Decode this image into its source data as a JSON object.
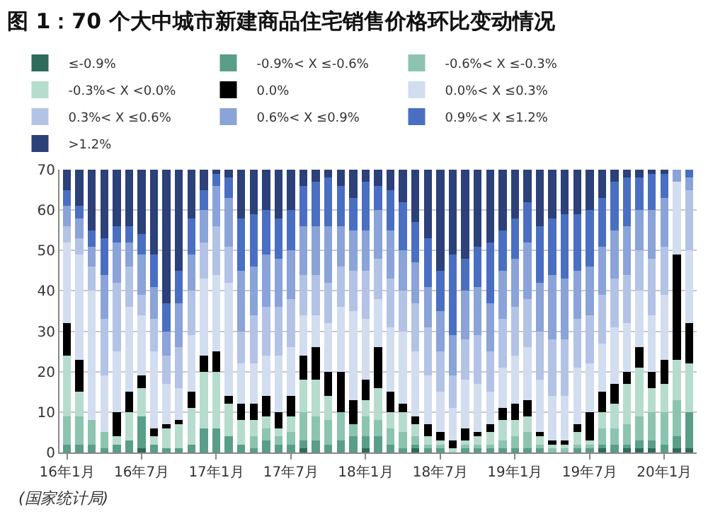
{
  "chart_data": {
    "type": "bar",
    "stacked": true,
    "title": "图 1：70 个大中城市新建商品住宅销售价格环比变动情况",
    "categories": [
      "16年1月",
      null,
      null,
      null,
      null,
      null,
      "16年7月",
      null,
      null,
      null,
      null,
      null,
      "17年1月",
      null,
      null,
      null,
      null,
      null,
      "17年7月",
      null,
      null,
      null,
      null,
      null,
      "18年1月",
      null,
      null,
      null,
      null,
      null,
      "18年7月",
      null,
      null,
      null,
      null,
      null,
      "19年1月",
      null,
      null,
      null,
      null,
      null,
      "19年7月",
      null,
      null,
      null,
      null,
      null,
      "20年1月",
      null,
      null
    ],
    "ylim": [
      0,
      70
    ],
    "yticks": [
      0,
      10,
      20,
      30,
      40,
      50,
      60,
      70
    ],
    "grid": "y",
    "legend": "top",
    "series": [
      {
        "name": "≤-0.9%",
        "color": "#2e6b5a",
        "values": [
          0,
          0,
          0,
          0,
          0,
          0,
          1,
          0,
          0,
          0,
          0,
          0,
          0,
          0,
          0,
          0,
          0,
          0,
          0,
          1,
          0,
          0,
          0,
          0,
          1,
          0,
          0,
          0,
          1,
          0,
          0,
          0,
          0,
          0,
          0,
          0,
          0,
          0,
          0,
          0,
          0,
          0,
          0,
          1,
          0,
          1,
          1,
          1,
          0,
          1,
          1
        ]
      },
      {
        "name": "-0.9%< X ≤-0.6%",
        "color": "#5a9e8a",
        "values": [
          2,
          2,
          2,
          1,
          2,
          3,
          8,
          2,
          1,
          1,
          2,
          6,
          6,
          4,
          2,
          1,
          3,
          2,
          2,
          2,
          3,
          2,
          3,
          4,
          3,
          4,
          2,
          1,
          1,
          1,
          1,
          0,
          1,
          1,
          1,
          1,
          1,
          1,
          1,
          0,
          0,
          1,
          1,
          1,
          2,
          1,
          2,
          2,
          2,
          3,
          9
        ]
      },
      {
        "name": "-0.6%< X ≤-0.3%",
        "color": "#8cc4b0",
        "values": [
          7,
          7,
          6,
          4,
          0,
          0,
          0,
          0,
          0,
          0,
          0,
          0,
          0,
          0,
          0,
          3,
          3,
          2,
          3,
          7,
          6,
          6,
          7,
          3,
          5,
          4,
          4,
          4,
          2,
          1,
          1,
          0,
          1,
          1,
          1,
          2,
          3,
          4,
          1,
          1,
          1,
          1,
          1,
          4,
          4,
          5,
          6,
          7,
          8,
          9,
          0
        ]
      },
      {
        "name": "-0.3%< X <0.0%",
        "color": "#b6dccd",
        "values": [
          15,
          6,
          0,
          0,
          2,
          7,
          7,
          2,
          5,
          6,
          9,
          14,
          14,
          8,
          6,
          4,
          3,
          2,
          4,
          8,
          9,
          6,
          0,
          0,
          4,
          8,
          4,
          5,
          3,
          2,
          1,
          1,
          1,
          2,
          3,
          5,
          4,
          4,
          2,
          1,
          1,
          3,
          1,
          4,
          6,
          10,
          12,
          6,
          7,
          10,
          12
        ]
      },
      {
        "name": "0.0%",
        "color": "#000000",
        "values": [
          8,
          8,
          0,
          0,
          6,
          5,
          3,
          2,
          1,
          1,
          4,
          4,
          5,
          2,
          4,
          4,
          5,
          4,
          5,
          6,
          8,
          6,
          10,
          6,
          5,
          10,
          5,
          2,
          2,
          3,
          2,
          2,
          3,
          1,
          2,
          3,
          4,
          4,
          1,
          1,
          1,
          2,
          7,
          5,
          5,
          3,
          5,
          4,
          6,
          26,
          10
        ]
      },
      {
        "name": "0.0%< X ≤0.3%",
        "color": "#d3ddf0",
        "values": [
          20,
          26,
          32,
          14,
          15,
          21,
          15,
          19,
          10,
          8,
          14,
          19,
          19,
          28,
          10,
          10,
          10,
          14,
          12,
          10,
          8,
          12,
          16,
          22,
          15,
          12,
          16,
          18,
          16,
          12,
          10,
          8,
          12,
          12,
          8,
          10,
          12,
          13,
          13,
          11,
          11,
          14,
          12,
          12,
          14,
          12,
          14,
          14,
          16,
          18,
          18
        ]
      },
      {
        "name": "0.3%< X ≤0.6%",
        "color": "#b3c3e6",
        "values": [
          4,
          4,
          6,
          14,
          17,
          10,
          5,
          8,
          7,
          10,
          11,
          9,
          12,
          9,
          8,
          12,
          12,
          12,
          12,
          10,
          10,
          10,
          10,
          10,
          12,
          10,
          12,
          10,
          12,
          12,
          10,
          8,
          10,
          12,
          10,
          12,
          12,
          12,
          12,
          14,
          14,
          12,
          12,
          12,
          12,
          12,
          10,
          14,
          12,
          0,
          15
        ]
      },
      {
        "name": "0.6%< X ≤0.9%",
        "color": "#8aa3d8",
        "values": [
          5,
          5,
          5,
          11,
          10,
          6,
          10,
          8,
          6,
          11,
          9,
          8,
          10,
          12,
          15,
          12,
          13,
          12,
          12,
          12,
          12,
          14,
          10,
          10,
          10,
          12,
          12,
          10,
          10,
          10,
          10,
          10,
          12,
          12,
          12,
          12,
          12,
          14,
          12,
          16,
          15,
          12,
          12,
          12,
          12,
          12,
          10,
          12,
          12,
          3,
          3
        ]
      },
      {
        "name": "0.9%< X ≤1.2%",
        "color": "#4a6fc2",
        "values": [
          4,
          3,
          4,
          9,
          4,
          4,
          5,
          8,
          7,
          8,
          9,
          5,
          3,
          5,
          13,
          13,
          11,
          10,
          10,
          10,
          11,
          12,
          10,
          8,
          12,
          6,
          10,
          12,
          10,
          12,
          10,
          20,
          8,
          10,
          15,
          10,
          10,
          10,
          14,
          14,
          16,
          14,
          14,
          12,
          12,
          12,
          8,
          9,
          6,
          0,
          2
        ]
      },
      {
        "name": ">1.2%",
        "color": "#2c4079",
        "values": [
          5,
          9,
          15,
          17,
          14,
          14,
          16,
          21,
          33,
          25,
          12,
          5,
          1,
          2,
          12,
          11,
          10,
          12,
          10,
          4,
          3,
          2,
          4,
          7,
          3,
          4,
          5,
          8,
          13,
          17,
          25,
          21,
          22,
          19,
          18,
          15,
          12,
          8,
          14,
          12,
          11,
          11,
          10,
          7,
          3,
          2,
          2,
          1,
          1,
          0,
          0
        ]
      }
    ],
    "annotations": [
      "(国家统计局)"
    ]
  }
}
